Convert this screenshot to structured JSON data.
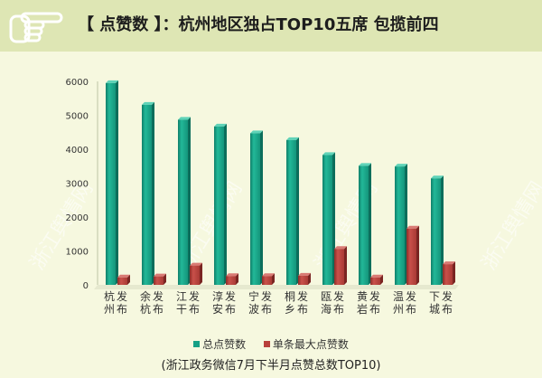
{
  "header": {
    "title": "【 点赞数 】：杭州地区独占TOP10五席 包揽前四",
    "icon": "pointing-hand-icon"
  },
  "watermark": {
    "text": "浙江舆情网"
  },
  "caption": "(浙江政务微信7月下半月点赞总数TOP10)",
  "colors": {
    "total": "#16a085",
    "max": "#b8403b",
    "header_band": "#dee6b4",
    "background": "#f6f8df"
  },
  "chart_data": {
    "type": "bar",
    "categories": [
      "杭州发布",
      "余杭发布",
      "江干发布",
      "淳安发布",
      "宁波发布",
      "桐乡发布",
      "瓯海发布",
      "黄岩发布",
      "温州发布",
      "下城发布"
    ],
    "series": [
      {
        "name": "总点赞数",
        "values": [
          5950,
          5310,
          4870,
          4670,
          4470,
          4270,
          3830,
          3510,
          3490,
          3140
        ]
      },
      {
        "name": "单条最大点赞数",
        "values": [
          220,
          250,
          570,
          260,
          260,
          270,
          1060,
          220,
          1660,
          610
        ]
      }
    ],
    "yticks": [
      0,
      1000,
      2000,
      3000,
      4000,
      5000,
      6000
    ],
    "ylim": [
      0,
      6000
    ],
    "legend_position": "bottom",
    "grid": false
  }
}
